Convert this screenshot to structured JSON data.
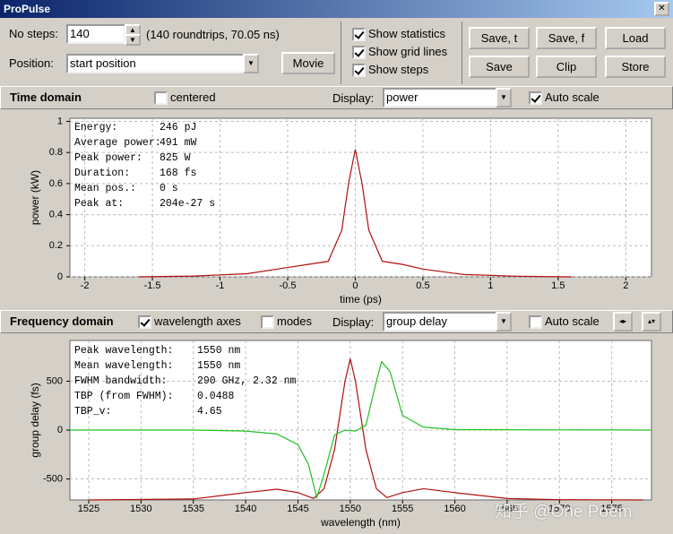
{
  "window": {
    "title": "ProPulse"
  },
  "controls": {
    "no_steps_label": "No steps:",
    "no_steps_value": "140",
    "roundtrips_info": "(140 roundtrips, 70.05 ns)",
    "position_label": "Position:",
    "position_value": "start position",
    "movie_button": "Movie",
    "checkboxes": [
      {
        "label": "Show statistics",
        "checked": true
      },
      {
        "label": "Show grid lines",
        "checked": true
      },
      {
        "label": "Show steps",
        "checked": true
      }
    ],
    "buttons": [
      "Save, t",
      "Save, f",
      "Load",
      "Save",
      "Clip",
      "Store"
    ]
  },
  "time_domain": {
    "title": "Time domain",
    "centered": {
      "label": "centered",
      "checked": false
    },
    "display_label": "Display:",
    "display_value": "power",
    "auto_scale": {
      "label": "Auto scale",
      "checked": true
    }
  },
  "frequency_domain": {
    "title": "Frequency domain",
    "wavelength_axes": {
      "label": "wavelength axes",
      "checked": true
    },
    "modes": {
      "label": "modes",
      "checked": false
    },
    "display_label": "Display:",
    "display_value": "group delay",
    "auto_scale": {
      "label": "Auto scale",
      "checked": false
    }
  },
  "chart_data": [
    {
      "type": "line",
      "x_label": "time (ps)",
      "y_label": "power (kW)",
      "xlim": [
        -2.11,
        2.19
      ],
      "ylim": [
        0,
        1.02
      ],
      "xticks": [
        -2,
        -1.5,
        -1,
        -0.5,
        0,
        0.5,
        1,
        1.5,
        2
      ],
      "yticks": [
        0,
        0.2,
        0.4,
        0.6,
        0.8,
        1
      ],
      "grid": true,
      "series": [
        {
          "color": "#b01010",
          "x": [
            -1.6,
            -1.2,
            -0.8,
            -0.5,
            -0.35,
            -0.2,
            -0.1,
            -0.05,
            0,
            0.05,
            0.1,
            0.2,
            0.35,
            0.5,
            0.8,
            1.2,
            1.6
          ],
          "values": [
            0,
            0.005,
            0.02,
            0.06,
            0.08,
            0.1,
            0.3,
            0.6,
            0.82,
            0.6,
            0.3,
            0.1,
            0.08,
            0.05,
            0.015,
            0.004,
            0
          ]
        }
      ],
      "statistics": [
        [
          "Energy:",
          "246 pJ"
        ],
        [
          "Average power:",
          "491 mW"
        ],
        [
          "Peak power:",
          "825 W"
        ],
        [
          "Duration:",
          "168 fs"
        ],
        [
          "Mean pos.:",
          "0 s"
        ],
        [
          "Peak at:",
          "204e-27 s"
        ]
      ]
    },
    {
      "type": "line",
      "x_label": "wavelength (nm)",
      "y_label": "group delay (fs)",
      "xlim": [
        1523.2,
        1578.8
      ],
      "ylim": [
        -715,
        917
      ],
      "xticks": [
        1525,
        1530,
        1535,
        1540,
        1545,
        1550,
        1555,
        1560,
        1565,
        1570,
        1575
      ],
      "yticks": [
        -500,
        0,
        500
      ],
      "grid": true,
      "series": [
        {
          "color": "#b01010",
          "x": [
            1525,
            1535,
            1540,
            1543,
            1545,
            1546.5,
            1547.5,
            1548.5,
            1549.5,
            1550,
            1550.5,
            1551.5,
            1552.5,
            1553.5,
            1555,
            1557,
            1560,
            1565,
            1570,
            1578
          ],
          "values": [
            -715,
            -705,
            -640,
            -605,
            -640,
            -700,
            -600,
            -200,
            500,
            730,
            500,
            -200,
            -600,
            -690,
            -640,
            -600,
            -640,
            -700,
            -712,
            -715
          ]
        },
        {
          "color": "#20c020",
          "x": [
            1523.2,
            1535,
            1540,
            1543,
            1545,
            1546,
            1546.8,
            1547.5,
            1548.5,
            1549.5,
            1550.5,
            1551.5,
            1552.5,
            1553,
            1553.8,
            1555,
            1557,
            1560,
            1578.8
          ],
          "values": [
            0,
            0,
            -10,
            -40,
            -150,
            -350,
            -690,
            -450,
            -50,
            0,
            -10,
            50,
            500,
            700,
            600,
            150,
            30,
            5,
            0
          ]
        }
      ],
      "statistics": [
        [
          "Peak wavelength:",
          "1550 nm"
        ],
        [
          "Mean wavelength:",
          "1550 nm"
        ],
        [
          "FWHM bandwidth:",
          "290 GHz, 2.32 nm"
        ],
        [
          "TBP (from FWHM):",
          "0.0488"
        ],
        [
          "TBP_v:",
          "4.65"
        ]
      ]
    }
  ],
  "watermark": "知乎 @One Poem"
}
